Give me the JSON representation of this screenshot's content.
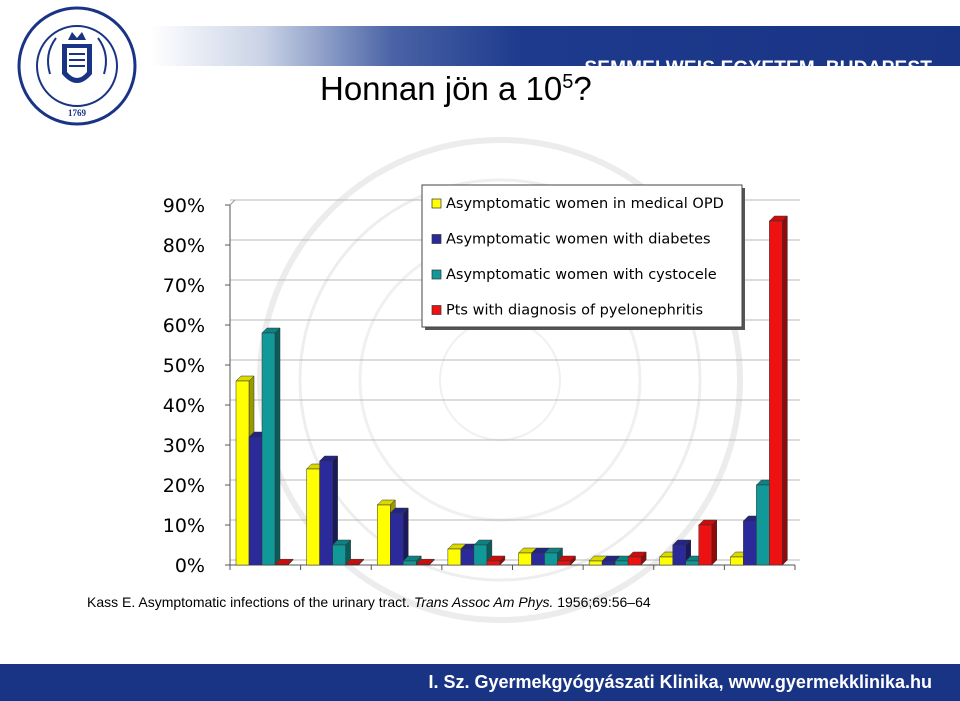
{
  "header": {
    "university": "SEMMELWEIS EGYETEM, BUDAPEST",
    "seal_text": "UNIVERSITAS BUDAPESTINENSIS DE SEMMELWEIS NOMINATA",
    "seal_year": "1769",
    "title_main": "Honnan jön a 10",
    "title_sup": "5",
    "title_end": "?"
  },
  "citation": {
    "part1": "Kass E. Asymptomatic infections of the urinary tract. ",
    "journal": "Trans Assoc Am Phys.",
    "part2": " 1956;69:56–64"
  },
  "footer": {
    "clinic": "I. Sz. Gyermekgyógyászati Klinika, www.gyermekklinika.hu"
  },
  "colors": {
    "band": "#1a3485",
    "series": [
      "#ffff00",
      "#2a2a9a",
      "#119999",
      "#ee1111"
    ]
  },
  "chart_data": {
    "type": "bar",
    "categories": [
      "",
      "",
      "",
      "",
      "",
      "",
      "",
      ""
    ],
    "series": [
      {
        "name": "Asymptomatic women in medical OPD",
        "values": [
          46,
          24,
          15,
          4,
          3,
          1,
          2,
          2
        ]
      },
      {
        "name": "Asymptomatic women with diabetes",
        "values": [
          32,
          26,
          13,
          4,
          3,
          1,
          5,
          11
        ]
      },
      {
        "name": "Asymptomatic women with cystocele",
        "values": [
          58,
          5,
          1,
          5,
          3,
          1,
          1,
          20
        ]
      },
      {
        "name": "Pts with diagnosis of pyelonephritis",
        "values": [
          0,
          0,
          0,
          1,
          1,
          2,
          10,
          86
        ]
      }
    ],
    "ytick_labels": [
      "0%",
      "10%",
      "20%",
      "30%",
      "40%",
      "50%",
      "60%",
      "70%",
      "80%",
      "90%"
    ],
    "ylim": [
      0,
      90
    ],
    "grid": true,
    "legend": "top-right"
  }
}
